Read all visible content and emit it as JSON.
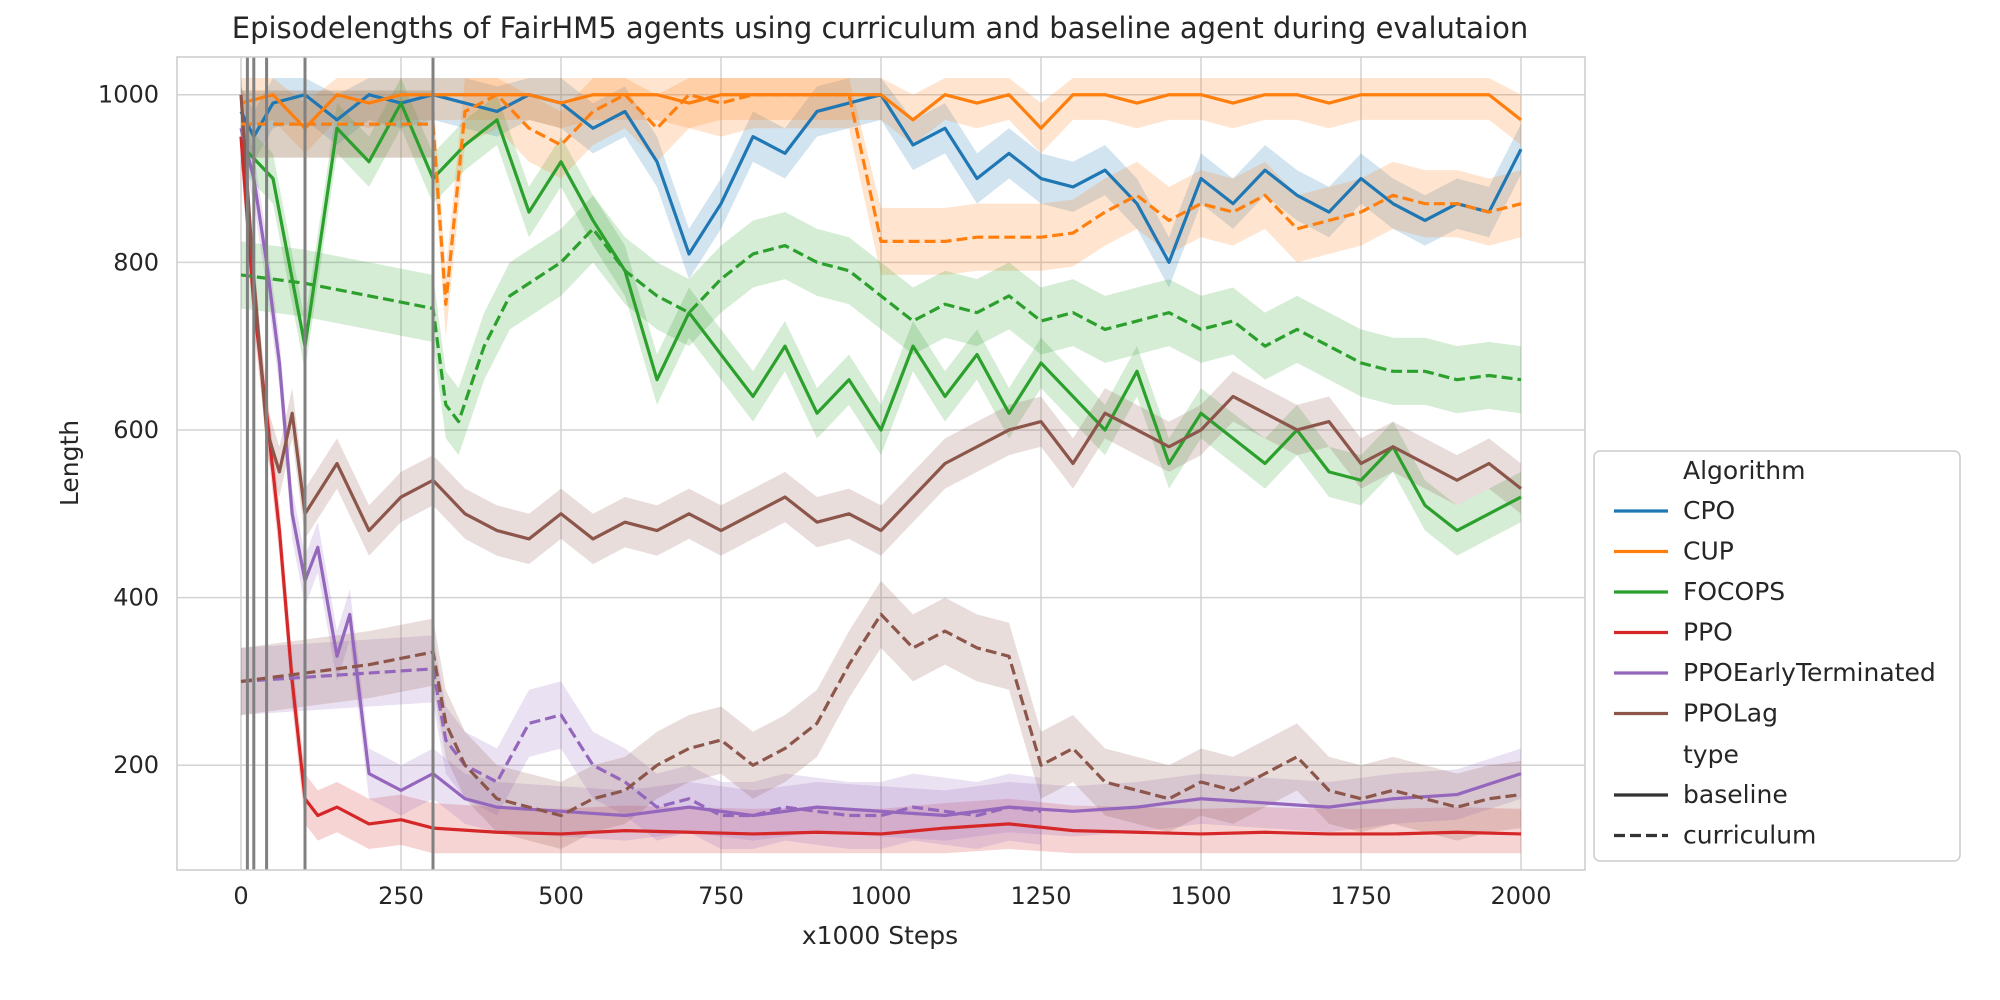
{
  "chart_data": {
    "type": "line",
    "title": "Episodelengths of FairHM5 agents using curriculum and baseline agent during evalutaion",
    "xlabel": "x1000 Steps",
    "ylabel": "Length",
    "xlim": [
      -100,
      2100
    ],
    "ylim": [
      75,
      1045
    ],
    "xticks": [
      0,
      250,
      500,
      750,
      1000,
      1250,
      1500,
      1750,
      2000
    ],
    "xtick_labels": [
      "0",
      "250",
      "500",
      "750",
      "1000",
      "1250",
      "1500",
      "1750",
      "2000"
    ],
    "yticks": [
      200,
      400,
      600,
      800,
      1000
    ],
    "ytick_labels": [
      "200",
      "400",
      "600",
      "800",
      "1000"
    ],
    "grid": true,
    "legend_position": "right",
    "curriculum_boundaries": [
      10,
      20,
      40,
      100,
      300
    ],
    "legend": {
      "hue_title": "Algorithm",
      "style_title": "type",
      "style_entries": [
        {
          "label": "baseline",
          "dash": "solid"
        },
        {
          "label": "curriculum",
          "dash": "dashed"
        }
      ]
    },
    "series": [
      {
        "name": "CPO",
        "type": "baseline",
        "color": "#1f77b4",
        "x": [
          0,
          20,
          50,
          100,
          150,
          200,
          250,
          300,
          350,
          400,
          450,
          500,
          550,
          600,
          650,
          700,
          750,
          800,
          850,
          900,
          950,
          1000,
          1050,
          1100,
          1150,
          1200,
          1250,
          1300,
          1350,
          1400,
          1450,
          1500,
          1550,
          1600,
          1650,
          1700,
          1750,
          1800,
          1850,
          1900,
          1950,
          2000
        ],
        "y": [
          980,
          950,
          990,
          1000,
          970,
          1000,
          990,
          1000,
          990,
          980,
          1000,
          990,
          960,
          980,
          920,
          810,
          870,
          950,
          930,
          980,
          990,
          1000,
          940,
          960,
          900,
          930,
          900,
          890,
          910,
          870,
          800,
          900,
          870,
          910,
          880,
          860,
          900,
          870,
          850,
          870,
          860,
          935
        ]
      },
      {
        "name": "CUP",
        "type": "baseline",
        "color": "#ff7f0e",
        "x": [
          0,
          50,
          100,
          150,
          200,
          250,
          300,
          350,
          400,
          450,
          500,
          550,
          600,
          650,
          700,
          750,
          800,
          850,
          900,
          950,
          1000,
          1050,
          1100,
          1150,
          1200,
          1250,
          1300,
          1350,
          1400,
          1450,
          1500,
          1550,
          1600,
          1650,
          1700,
          1750,
          1800,
          1850,
          1900,
          1950,
          2000
        ],
        "y": [
          990,
          1000,
          960,
          1000,
          990,
          1000,
          1000,
          1000,
          1000,
          1000,
          990,
          1000,
          1000,
          1000,
          990,
          1000,
          1000,
          1000,
          1000,
          1000,
          1000,
          970,
          1000,
          990,
          1000,
          960,
          1000,
          1000,
          990,
          1000,
          1000,
          990,
          1000,
          1000,
          990,
          1000,
          1000,
          1000,
          1000,
          1000,
          970
        ]
      },
      {
        "name": "FOCOPS",
        "type": "baseline",
        "color": "#2ca02c",
        "x": [
          0,
          50,
          100,
          150,
          200,
          250,
          300,
          350,
          400,
          450,
          500,
          550,
          600,
          650,
          700,
          750,
          800,
          850,
          900,
          950,
          1000,
          1050,
          1100,
          1150,
          1200,
          1250,
          1300,
          1350,
          1400,
          1450,
          1500,
          1550,
          1600,
          1650,
          1700,
          1750,
          1800,
          1850,
          1900,
          1950,
          2000
        ],
        "y": [
          940,
          900,
          700,
          960,
          920,
          990,
          900,
          940,
          970,
          860,
          920,
          850,
          790,
          660,
          740,
          690,
          640,
          700,
          620,
          660,
          600,
          700,
          640,
          690,
          620,
          680,
          640,
          600,
          670,
          560,
          620,
          590,
          560,
          600,
          550,
          540,
          580,
          510,
          480,
          500,
          520
        ]
      },
      {
        "name": "PPO",
        "type": "baseline",
        "color": "#d62728",
        "x": [
          0,
          20,
          40,
          60,
          80,
          100,
          120,
          150,
          200,
          250,
          300,
          400,
          500,
          600,
          700,
          800,
          900,
          1000,
          1100,
          1200,
          1300,
          1400,
          1500,
          1600,
          1700,
          1800,
          1900,
          2000
        ],
        "y": [
          950,
          750,
          620,
          480,
          300,
          160,
          140,
          150,
          130,
          135,
          125,
          120,
          118,
          122,
          120,
          118,
          120,
          118,
          125,
          130,
          122,
          120,
          118,
          120,
          118,
          118,
          120,
          118
        ]
      },
      {
        "name": "PPOEarlyTerminated",
        "type": "baseline",
        "color": "#9467bd",
        "x": [
          0,
          20,
          40,
          60,
          80,
          100,
          120,
          150,
          170,
          200,
          250,
          300,
          350,
          400,
          500,
          600,
          700,
          800,
          900,
          1000,
          1100,
          1200,
          1300,
          1400,
          1500,
          1600,
          1700,
          1800,
          1900,
          2000
        ],
        "y": [
          960,
          900,
          800,
          680,
          500,
          420,
          460,
          330,
          380,
          190,
          170,
          190,
          160,
          150,
          145,
          140,
          150,
          140,
          150,
          145,
          140,
          150,
          145,
          150,
          160,
          155,
          150,
          160,
          165,
          190
        ]
      },
      {
        "name": "PPOLag",
        "type": "baseline",
        "color": "#8c564b",
        "x": [
          0,
          20,
          40,
          60,
          80,
          100,
          150,
          200,
          250,
          300,
          350,
          400,
          450,
          500,
          550,
          600,
          650,
          700,
          750,
          800,
          850,
          900,
          950,
          1000,
          1050,
          1100,
          1150,
          1200,
          1250,
          1300,
          1350,
          1400,
          1450,
          1500,
          1550,
          1600,
          1650,
          1700,
          1750,
          1800,
          1850,
          1900,
          1950,
          2000
        ],
        "y": [
          1000,
          780,
          600,
          550,
          620,
          500,
          560,
          480,
          520,
          540,
          500,
          480,
          470,
          500,
          470,
          490,
          480,
          500,
          480,
          500,
          520,
          490,
          500,
          480,
          520,
          560,
          580,
          600,
          610,
          560,
          620,
          600,
          580,
          600,
          640,
          620,
          600,
          610,
          560,
          580,
          560,
          540,
          560,
          530
        ]
      },
      {
        "name": "CPO",
        "type": "curriculum",
        "color": "#1f77b4",
        "x": [
          0,
          50,
          100,
          200,
          300
        ],
        "y": [
          965,
          965,
          965,
          965,
          965
        ]
      },
      {
        "name": "CUP",
        "type": "curriculum",
        "color": "#ff7f0e",
        "x": [
          0,
          100,
          200,
          300,
          320,
          350,
          400,
          450,
          500,
          550,
          600,
          650,
          700,
          750,
          800,
          850,
          900,
          950,
          1000,
          1050,
          1100,
          1150,
          1200,
          1250,
          1300,
          1350,
          1400,
          1450,
          1500,
          1550,
          1600,
          1650,
          1700,
          1750,
          1800,
          1850,
          1900,
          1950,
          2000
        ],
        "y": [
          965,
          965,
          965,
          965,
          750,
          980,
          1000,
          960,
          940,
          980,
          1000,
          960,
          1000,
          990,
          1000,
          1000,
          1000,
          1000,
          825,
          825,
          825,
          830,
          830,
          830,
          835,
          860,
          880,
          850,
          870,
          860,
          880,
          840,
          850,
          860,
          880,
          870,
          870,
          860,
          870
        ]
      },
      {
        "name": "FOCOPS",
        "type": "curriculum",
        "color": "#2ca02c",
        "x": [
          0,
          100,
          200,
          300,
          320,
          340,
          380,
          420,
          460,
          500,
          550,
          600,
          650,
          700,
          750,
          800,
          850,
          900,
          950,
          1000,
          1050,
          1100,
          1150,
          1200,
          1250,
          1300,
          1350,
          1400,
          1450,
          1500,
          1550,
          1600,
          1650,
          1700,
          1750,
          1800,
          1850,
          1900,
          1950,
          2000
        ],
        "y": [
          785,
          775,
          760,
          745,
          630,
          610,
          700,
          760,
          780,
          800,
          840,
          790,
          760,
          740,
          780,
          810,
          820,
          800,
          790,
          760,
          730,
          750,
          740,
          760,
          730,
          740,
          720,
          730,
          740,
          720,
          730,
          700,
          720,
          700,
          680,
          670,
          670,
          660,
          665,
          660
        ]
      },
      {
        "name": "PPOEarlyTerminated",
        "type": "curriculum",
        "color": "#9467bd",
        "x": [
          0,
          100,
          200,
          300,
          320,
          350,
          400,
          450,
          500,
          550,
          600,
          650,
          700,
          750,
          800,
          850,
          900,
          950,
          1000,
          1050,
          1100,
          1150,
          1200,
          1250
        ],
        "y": [
          300,
          305,
          310,
          315,
          230,
          200,
          180,
          250,
          260,
          200,
          180,
          150,
          160,
          140,
          140,
          150,
          145,
          140,
          140,
          150,
          145,
          140,
          150,
          145
        ]
      },
      {
        "name": "PPOLag",
        "type": "curriculum",
        "color": "#8c564b",
        "x": [
          0,
          100,
          200,
          300,
          320,
          350,
          400,
          450,
          500,
          550,
          600,
          650,
          700,
          750,
          800,
          850,
          900,
          950,
          1000,
          1050,
          1100,
          1150,
          1200,
          1250,
          1300,
          1350,
          1400,
          1450,
          1500,
          1550,
          1600,
          1650,
          1700,
          1750,
          1800,
          1850,
          1900,
          1950,
          2000
        ],
        "y": [
          300,
          310,
          320,
          335,
          250,
          200,
          160,
          150,
          140,
          160,
          170,
          200,
          220,
          230,
          200,
          220,
          250,
          320,
          380,
          340,
          360,
          340,
          330,
          200,
          220,
          180,
          170,
          160,
          180,
          170,
          190,
          210,
          170,
          160,
          170,
          160,
          150,
          160,
          165
        ]
      }
    ]
  }
}
